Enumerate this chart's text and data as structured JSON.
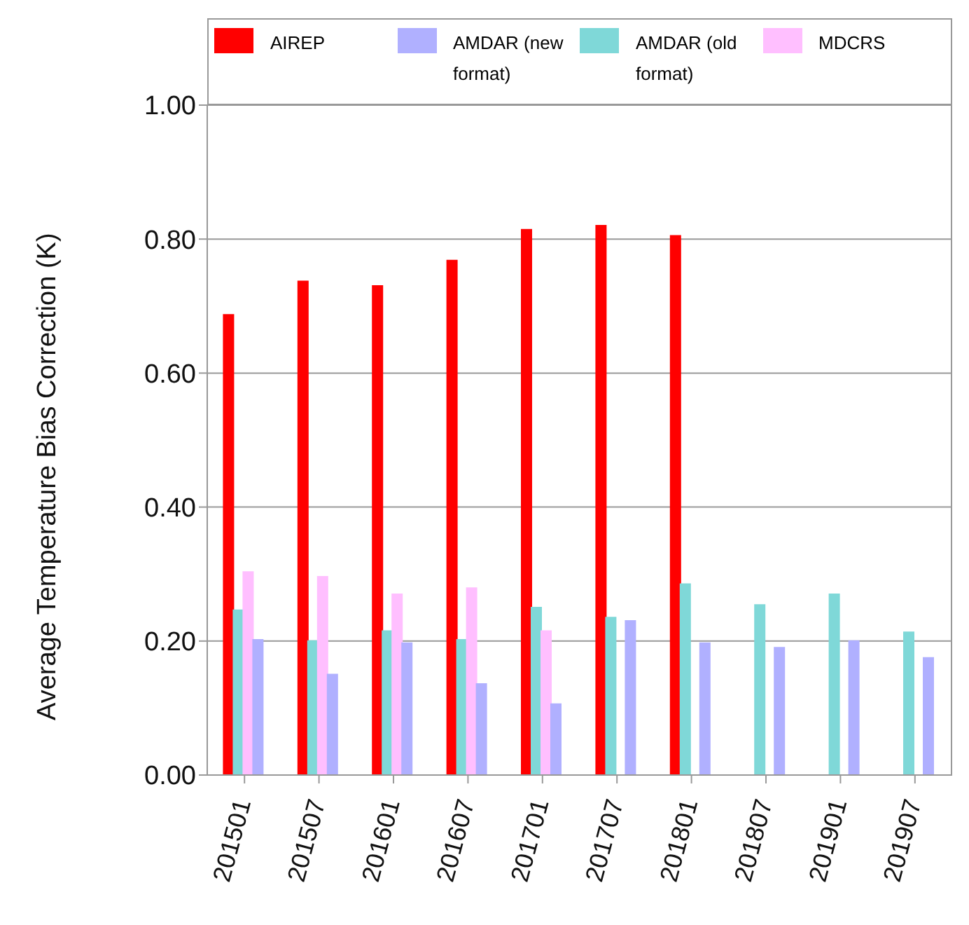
{
  "chart_data": {
    "type": "bar",
    "ylabel": "Average Temperature Bias Correction (K)",
    "categories": [
      "201501",
      "201507",
      "201601",
      "201607",
      "201701",
      "201707",
      "201801",
      "201807",
      "201901",
      "201907"
    ],
    "series": [
      {
        "name": "AIREP",
        "color": "#ff0000",
        "values": [
          0.687,
          0.737,
          0.73,
          0.768,
          0.814,
          0.82,
          0.805,
          null,
          null,
          null
        ]
      },
      {
        "name": "AMDAR (old format)",
        "color": "#7fd8d8",
        "values": [
          0.246,
          0.2,
          0.215,
          0.202,
          0.25,
          0.235,
          0.285,
          0.254,
          0.27,
          0.213
        ]
      },
      {
        "name": "MDCRS",
        "color": "#ffbfff",
        "values": [
          0.303,
          0.296,
          0.27,
          0.279,
          0.215,
          null,
          null,
          null,
          null,
          null
        ]
      },
      {
        "name": "AMDAR (new format)",
        "color": "#b0b0ff",
        "values": [
          0.202,
          0.15,
          0.197,
          0.136,
          0.106,
          0.23,
          0.197,
          0.19,
          0.2,
          0.175
        ]
      }
    ],
    "ylim": [
      0,
      1
    ],
    "yticks": [
      {
        "value": 0,
        "label": "0.00"
      },
      {
        "value": 0.2,
        "label": "0.20"
      },
      {
        "value": 0.4,
        "label": "0.40"
      },
      {
        "value": 0.6,
        "label": "0.60"
      },
      {
        "value": 0.8,
        "label": "0.80"
      },
      {
        "value": 1,
        "label": "1.00"
      }
    ],
    "grid": "y",
    "legend": "top"
  }
}
